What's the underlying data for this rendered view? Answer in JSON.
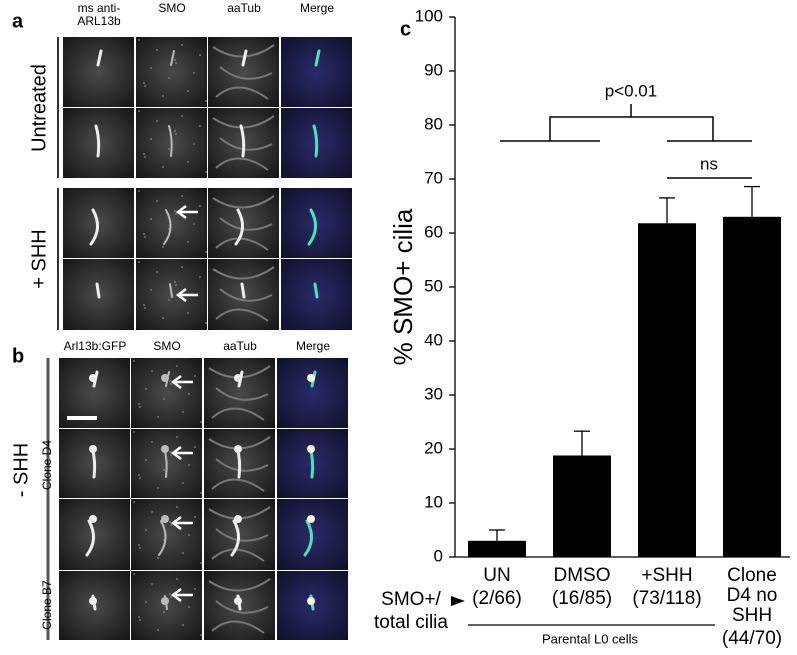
{
  "panels": {
    "a": {
      "letter": "a",
      "columns": [
        "ms anti-ARL13b",
        "SMO",
        "aaTub",
        "Merge"
      ],
      "groups": [
        "Untreated",
        "+ SHH"
      ]
    },
    "b": {
      "letter": "b",
      "columns": [
        "Arl13b:GFP",
        "SMO",
        "aaTub",
        "Merge"
      ],
      "condition": "- SHH",
      "groups": [
        "Clone D4",
        "Clone B7"
      ]
    }
  },
  "chart_data": {
    "type": "bar",
    "panel_letter": "c",
    "ylabel": "% SMO+ cilia",
    "categories": [
      "UN",
      "DMSO",
      "+SHH",
      "Clone D4 no SHH"
    ],
    "count_labels": [
      "(2/66)",
      "(16/85)",
      "(73/118)",
      "(44/70)"
    ],
    "values": [
      3,
      18.8,
      61.8,
      63
    ],
    "errors": [
      2,
      4.5,
      4.7,
      5.6
    ],
    "color": "#000000",
    "ylim": [
      0,
      100
    ],
    "yticks": [
      0,
      10,
      20,
      30,
      40,
      50,
      60,
      70,
      80,
      90,
      100
    ],
    "annotations": [
      "p<0.01",
      "ns",
      "Parental L0 cells"
    ],
    "row_caption": [
      "SMO+/",
      "total cilia"
    ]
  }
}
